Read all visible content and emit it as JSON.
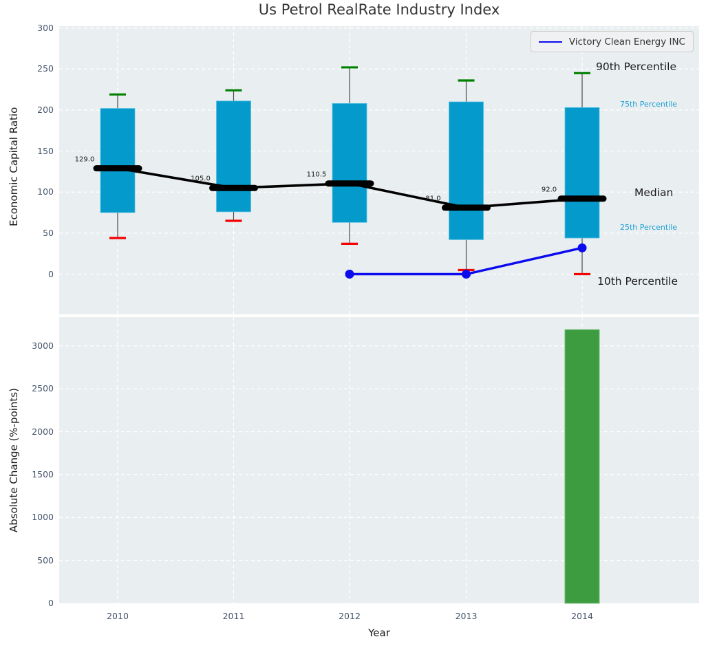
{
  "figure_title": "Us Petrol RealRate Industry Index",
  "legend": {
    "entries": [
      {
        "label": "Victory Clean Energy INC",
        "color": "#0b0bee"
      }
    ]
  },
  "chart_data": [
    {
      "type": "boxplot",
      "title": "Us Petrol RealRate Industry Index",
      "ylabel": "Economic Capital Ratio",
      "ylim": [
        -49,
        302
      ],
      "yticks": [
        0,
        50,
        100,
        150,
        200,
        250,
        300
      ],
      "grid": true,
      "legend_position": "upper right",
      "categories": [
        "2010",
        "2011",
        "2012",
        "2013",
        "2014"
      ],
      "percentiles": {
        "p10": [
          44,
          65,
          37,
          5,
          0
        ],
        "p25": [
          75,
          76,
          63,
          42,
          44
        ],
        "median": [
          129.0,
          105.0,
          110.5,
          81.0,
          92.0
        ],
        "p75": [
          202,
          211,
          208,
          210,
          203
        ],
        "p90": [
          219,
          224,
          252,
          236,
          245
        ]
      },
      "median_labels": [
        "129.0",
        "105.0",
        "110.5",
        "81.0",
        "92.0"
      ],
      "series": [
        {
          "name": "Victory Clean Energy INC",
          "type": "line",
          "x": [
            "2012",
            "2013",
            "2014"
          ],
          "values": [
            0,
            0,
            32
          ],
          "color": "#0b0bee"
        }
      ],
      "annotations": [
        {
          "label": "90th Percentile",
          "size": "large",
          "anchor_value": 245
        },
        {
          "label": "75th Percentile",
          "size": "small",
          "anchor_value": 200
        },
        {
          "label": "Median",
          "size": "large",
          "anchor_value": 92
        },
        {
          "label": "25th Percentile",
          "size": "small",
          "anchor_value": 50
        },
        {
          "label": "10th Percentile",
          "size": "large",
          "anchor_value": -8
        }
      ],
      "colors": {
        "box": "#049bcc",
        "box_edge": "#59c0e2",
        "p90_cap": "#008000",
        "p10_cap": "#f40000",
        "median_line": "#000000",
        "whisker": "#4a4a4a",
        "plot_background": "#e9eef0",
        "gridline": "#ffffff"
      }
    },
    {
      "type": "bar",
      "ylabel": "Absolute Change (%-points)",
      "xlabel": "Year",
      "ylim": [
        0,
        3340
      ],
      "yticks": [
        0,
        500,
        1000,
        1500,
        2000,
        2500,
        3000
      ],
      "grid": true,
      "categories": [
        "2010",
        "2011",
        "2012",
        "2013",
        "2014"
      ],
      "values": [
        null,
        null,
        null,
        null,
        3190
      ],
      "bar_color": "#3d9c40",
      "bar_edge_color": "#6fbd72"
    }
  ]
}
